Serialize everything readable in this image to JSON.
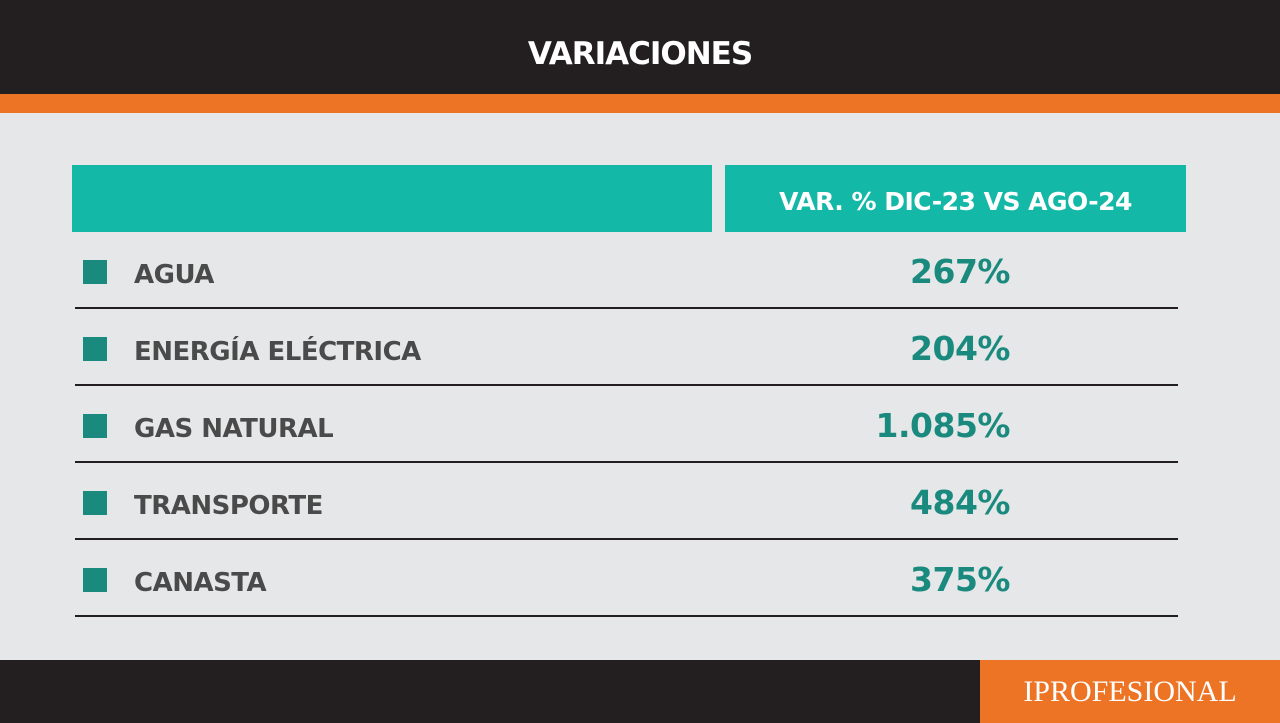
{
  "header": {
    "title": "VARIACIONES"
  },
  "table": {
    "column_header": "VAR. % DIC-23 VS AGO-24",
    "rows": [
      [
        "AGUA",
        "267%"
      ],
      [
        "ENERGÍA ELÉCTRICA",
        "204%"
      ],
      [
        "GAS NATURAL",
        "1.085%"
      ],
      [
        "TRANSPORTE",
        "484%"
      ],
      [
        "CANASTA",
        "375%"
      ]
    ]
  },
  "footer": {
    "brand": "IPROFESIONAL"
  }
}
